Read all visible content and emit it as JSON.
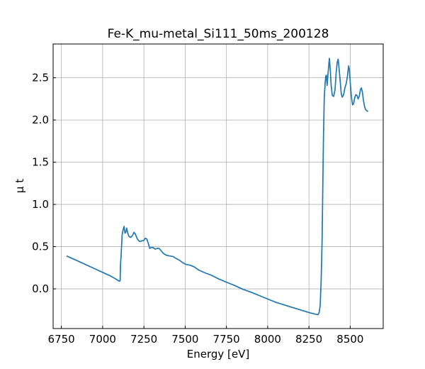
{
  "chart_data": {
    "type": "line",
    "title": "Fe-K_mu-metal_Si111_50ms_200128",
    "xlabel": "Energy [eV]",
    "ylabel": "μ t",
    "xlim": [
      6700,
      8700
    ],
    "ylim": [
      -0.47,
      2.9
    ],
    "xticks": [
      6750,
      7000,
      7250,
      7500,
      7750,
      8000,
      8250,
      8500
    ],
    "yticks": [
      0.0,
      0.5,
      1.0,
      1.5,
      2.0,
      2.5
    ],
    "grid": true,
    "line_color": "#1f77b4",
    "series": [
      {
        "points": [
          [
            6782,
            0.39
          ],
          [
            6850,
            0.33
          ],
          [
            6950,
            0.24
          ],
          [
            7050,
            0.15
          ],
          [
            7090,
            0.105
          ],
          [
            7102,
            0.09
          ],
          [
            7106,
            0.1
          ],
          [
            7108,
            0.28
          ],
          [
            7112,
            0.4
          ],
          [
            7118,
            0.64
          ],
          [
            7124,
            0.7
          ],
          [
            7130,
            0.74
          ],
          [
            7135,
            0.66
          ],
          [
            7140,
            0.67
          ],
          [
            7146,
            0.72
          ],
          [
            7152,
            0.66
          ],
          [
            7160,
            0.62
          ],
          [
            7170,
            0.61
          ],
          [
            7180,
            0.63
          ],
          [
            7190,
            0.67
          ],
          [
            7198,
            0.65
          ],
          [
            7208,
            0.6
          ],
          [
            7218,
            0.57
          ],
          [
            7228,
            0.56
          ],
          [
            7238,
            0.57
          ],
          [
            7248,
            0.57
          ],
          [
            7258,
            0.6
          ],
          [
            7268,
            0.59
          ],
          [
            7278,
            0.53
          ],
          [
            7285,
            0.48
          ],
          [
            7295,
            0.49
          ],
          [
            7305,
            0.49
          ],
          [
            7318,
            0.47
          ],
          [
            7330,
            0.48
          ],
          [
            7342,
            0.48
          ],
          [
            7355,
            0.45
          ],
          [
            7368,
            0.42
          ],
          [
            7385,
            0.4
          ],
          [
            7405,
            0.39
          ],
          [
            7425,
            0.385
          ],
          [
            7445,
            0.36
          ],
          [
            7465,
            0.34
          ],
          [
            7485,
            0.31
          ],
          [
            7505,
            0.29
          ],
          [
            7530,
            0.28
          ],
          [
            7555,
            0.26
          ],
          [
            7585,
            0.22
          ],
          [
            7620,
            0.19
          ],
          [
            7660,
            0.16
          ],
          [
            7700,
            0.12
          ],
          [
            7750,
            0.08
          ],
          [
            7800,
            0.04
          ],
          [
            7850,
            -0.005
          ],
          [
            7900,
            -0.04
          ],
          [
            7950,
            -0.08
          ],
          [
            8000,
            -0.12
          ],
          [
            8050,
            -0.16
          ],
          [
            8100,
            -0.19
          ],
          [
            8150,
            -0.22
          ],
          [
            8200,
            -0.25
          ],
          [
            8250,
            -0.28
          ],
          [
            8290,
            -0.3
          ],
          [
            8305,
            -0.305
          ],
          [
            8312,
            -0.28
          ],
          [
            8318,
            -0.2
          ],
          [
            8324,
            0.1
          ],
          [
            8330,
            0.6
          ],
          [
            8334,
            1.2
          ],
          [
            8338,
            1.8
          ],
          [
            8343,
            2.27
          ],
          [
            8348,
            2.43
          ],
          [
            8352,
            2.52
          ],
          [
            8356,
            2.53
          ],
          [
            8360,
            2.41
          ],
          [
            8365,
            2.53
          ],
          [
            8370,
            2.65
          ],
          [
            8374,
            2.73
          ],
          [
            8379,
            2.6
          ],
          [
            8385,
            2.4
          ],
          [
            8392,
            2.29
          ],
          [
            8400,
            2.28
          ],
          [
            8408,
            2.36
          ],
          [
            8415,
            2.56
          ],
          [
            8421,
            2.68
          ],
          [
            8427,
            2.72
          ],
          [
            8433,
            2.6
          ],
          [
            8440,
            2.45
          ],
          [
            8446,
            2.31
          ],
          [
            8452,
            2.27
          ],
          [
            8460,
            2.3
          ],
          [
            8468,
            2.38
          ],
          [
            8476,
            2.43
          ],
          [
            8484,
            2.53
          ],
          [
            8490,
            2.64
          ],
          [
            8495,
            2.6
          ],
          [
            8501,
            2.43
          ],
          [
            8508,
            2.26
          ],
          [
            8514,
            2.18
          ],
          [
            8520,
            2.19
          ],
          [
            8527,
            2.26
          ],
          [
            8534,
            2.3
          ],
          [
            8541,
            2.29
          ],
          [
            8548,
            2.25
          ],
          [
            8555,
            2.28
          ],
          [
            8562,
            2.36
          ],
          [
            8568,
            2.38
          ],
          [
            8574,
            2.33
          ],
          [
            8580,
            2.24
          ],
          [
            8586,
            2.17
          ],
          [
            8592,
            2.13
          ],
          [
            8600,
            2.11
          ],
          [
            8608,
            2.1
          ]
        ]
      }
    ]
  }
}
